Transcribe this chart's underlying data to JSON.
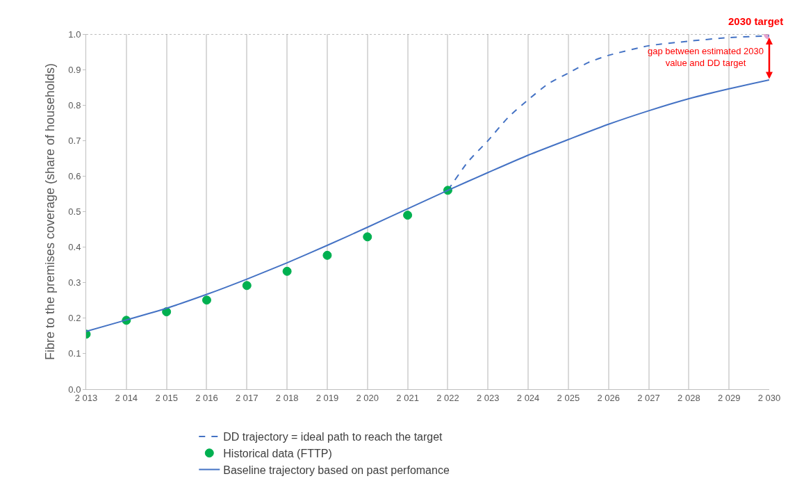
{
  "chart_data": {
    "type": "line",
    "ylabel": "Fibre to the premises coverage (share of households)",
    "x": [
      2013,
      2014,
      2015,
      2016,
      2017,
      2018,
      2019,
      2020,
      2021,
      2022,
      2023,
      2024,
      2025,
      2026,
      2027,
      2028,
      2029,
      2030
    ],
    "series": [
      {
        "type": "scatter",
        "color": "#e6a3cf",
        "marker": "circle",
        "x": [
          2030
        ],
        "values": [
          1.0
        ]
      },
      {
        "name": "DD trajectory = ideal path to reach the target",
        "color": "#4472c4",
        "line_style": "dashed",
        "marker": "none",
        "x": [
          2022,
          2022.5,
          2023,
          2023.5,
          2024,
          2024.5,
          2025,
          2025.5,
          2026,
          2027,
          2028,
          2029,
          2030
        ],
        "values": [
          0.56,
          0.64,
          0.7,
          0.765,
          0.815,
          0.86,
          0.89,
          0.92,
          0.94,
          0.967,
          0.98,
          0.99,
          0.995
        ]
      },
      {
        "name": "Historical data (FTTP)",
        "type": "scatter",
        "color": "#00b050",
        "marker": "circle",
        "x": [
          2013,
          2014,
          2015,
          2016,
          2017,
          2018,
          2019,
          2020,
          2021,
          2022
        ],
        "values": [
          0.155,
          0.194,
          0.218,
          0.251,
          0.292,
          0.332,
          0.377,
          0.429,
          0.49,
          0.56
        ]
      },
      {
        "name": "Baseline trajectory based on past perfomance",
        "color": "#4472c4",
        "line_style": "solid",
        "marker": "none",
        "values": [
          0.163,
          0.195,
          0.228,
          0.267,
          0.31,
          0.356,
          0.405,
          0.456,
          0.508,
          0.56,
          0.61,
          0.659,
          0.703,
          0.746,
          0.784,
          0.818,
          0.846,
          0.871
        ]
      }
    ],
    "xlim": [
      2013,
      2030
    ],
    "xticks": [
      {
        "value": 2013,
        "label": "2 013"
      },
      {
        "value": 2014,
        "label": "2 014"
      },
      {
        "value": 2015,
        "label": "2 015"
      },
      {
        "value": 2016,
        "label": "2 016"
      },
      {
        "value": 2017,
        "label": "2 017"
      },
      {
        "value": 2018,
        "label": "2 018"
      },
      {
        "value": 2019,
        "label": "2 019"
      },
      {
        "value": 2020,
        "label": "2 020"
      },
      {
        "value": 2021,
        "label": "2 021"
      },
      {
        "value": 2022,
        "label": "2 022"
      },
      {
        "value": 2023,
        "label": "2 023"
      },
      {
        "value": 2024,
        "label": "2 024"
      },
      {
        "value": 2025,
        "label": "2 025"
      },
      {
        "value": 2026,
        "label": "2 026"
      },
      {
        "value": 2027,
        "label": "2 027"
      },
      {
        "value": 2028,
        "label": "2 028"
      },
      {
        "value": 2029,
        "label": "2 029"
      },
      {
        "value": 2030,
        "label": "2 030"
      }
    ],
    "ylim": [
      0,
      1.0
    ],
    "yticks": [
      {
        "value": 0,
        "label": "0.0"
      },
      {
        "value": 0.1,
        "label": "0.1"
      },
      {
        "value": 0.2,
        "label": "0.2"
      },
      {
        "value": 0.3,
        "label": "0.3"
      },
      {
        "value": 0.4,
        "label": "0.4"
      },
      {
        "value": 0.5,
        "label": "0.5"
      },
      {
        "value": 0.6,
        "label": "0.6"
      },
      {
        "value": 0.7,
        "label": "0.7"
      },
      {
        "value": 0.8,
        "label": "0.8"
      },
      {
        "value": 0.9,
        "label": "0.9"
      },
      {
        "value": 1.0,
        "label": "1.0"
      }
    ],
    "grid": "x",
    "legend": "bottom",
    "ref_lines": [
      {
        "axis": "y",
        "value": 1.0,
        "color": "#a6a6a6",
        "line_style": "dotted"
      }
    ],
    "annotations": [
      {
        "text": "2030 target",
        "x": 2030,
        "y": 1.0
      },
      {
        "text": "gap between estimated 2030\nvalue and DD target",
        "x": 2030,
        "y": 0.871
      }
    ]
  }
}
